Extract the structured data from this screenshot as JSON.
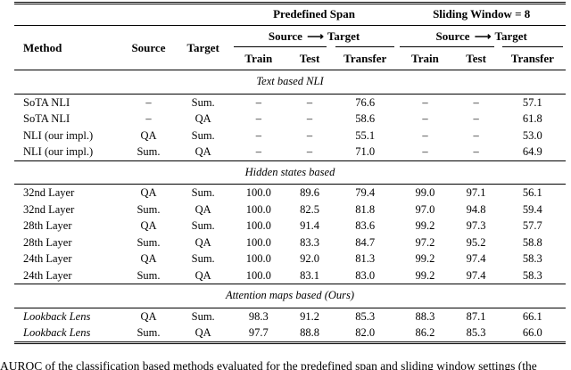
{
  "colors": {
    "text": "#000000",
    "background": "#ffffff",
    "rule": "#000000"
  },
  "table": {
    "group_headers": [
      {
        "label": "Predefined Span"
      },
      {
        "label": "Sliding Window = 8"
      }
    ],
    "col_headers": {
      "method": "Method",
      "source": "Source",
      "target": "Target",
      "span_group": {
        "source": "Source",
        "arrow": "⟶",
        "target": "Target"
      },
      "sub": [
        "Train",
        "Test",
        "Transfer"
      ]
    },
    "missing_value_glyph": "–",
    "sections": [
      {
        "title": "Text based NLI",
        "rows": [
          {
            "method": "SoTA NLI",
            "italic": false,
            "source": "–",
            "target": "Sum.",
            "cells": [
              "–",
              "–",
              "76.6",
              "–",
              "–",
              "57.1"
            ]
          },
          {
            "method": "SoTA NLI",
            "italic": false,
            "source": "–",
            "target": "QA",
            "cells": [
              "–",
              "–",
              "58.6",
              "–",
              "–",
              "61.8"
            ]
          },
          {
            "method": "NLI (our impl.)",
            "italic": false,
            "source": "QA",
            "target": "Sum.",
            "cells": [
              "–",
              "–",
              "55.1",
              "–",
              "–",
              "53.0"
            ]
          },
          {
            "method": "NLI (our impl.)",
            "italic": false,
            "source": "Sum.",
            "target": "QA",
            "cells": [
              "–",
              "–",
              "71.0",
              "–",
              "–",
              "64.9"
            ]
          }
        ]
      },
      {
        "title": "Hidden states based",
        "rows": [
          {
            "method": "32nd Layer",
            "italic": false,
            "source": "QA",
            "target": "Sum.",
            "cells": [
              "100.0",
              "89.6",
              "79.4",
              "99.0",
              "97.1",
              "56.1"
            ]
          },
          {
            "method": "32nd Layer",
            "italic": false,
            "source": "Sum.",
            "target": "QA",
            "cells": [
              "100.0",
              "82.5",
              "81.8",
              "97.0",
              "94.8",
              "59.4"
            ]
          },
          {
            "method": "28th Layer",
            "italic": false,
            "source": "QA",
            "target": "Sum.",
            "cells": [
              "100.0",
              "91.4",
              "83.6",
              "99.2",
              "97.3",
              "57.7"
            ]
          },
          {
            "method": "28th Layer",
            "italic": false,
            "source": "Sum.",
            "target": "QA",
            "cells": [
              "100.0",
              "83.3",
              "84.7",
              "97.2",
              "95.2",
              "58.8"
            ]
          },
          {
            "method": "24th Layer",
            "italic": false,
            "source": "QA",
            "target": "Sum.",
            "cells": [
              "100.0",
              "92.0",
              "81.3",
              "99.2",
              "97.4",
              "58.3"
            ]
          },
          {
            "method": "24th Layer",
            "italic": false,
            "source": "Sum.",
            "target": "QA",
            "cells": [
              "100.0",
              "83.1",
              "83.0",
              "99.2",
              "97.4",
              "58.3"
            ]
          }
        ]
      },
      {
        "title": "Attention maps based (Ours)",
        "rows": [
          {
            "method": "Lookback Lens",
            "italic": true,
            "source": "QA",
            "target": "Sum.",
            "cells": [
              "98.3",
              "91.2",
              "85.3",
              "88.3",
              "87.1",
              "66.1"
            ]
          },
          {
            "method": "Lookback Lens",
            "italic": true,
            "source": "Sum.",
            "target": "QA",
            "cells": [
              "97.7",
              "88.8",
              "82.0",
              "86.2",
              "85.3",
              "66.0"
            ]
          }
        ]
      }
    ]
  },
  "caption": "AUROC of the classification based methods evaluated for the predefined span and sliding window settings (the"
}
